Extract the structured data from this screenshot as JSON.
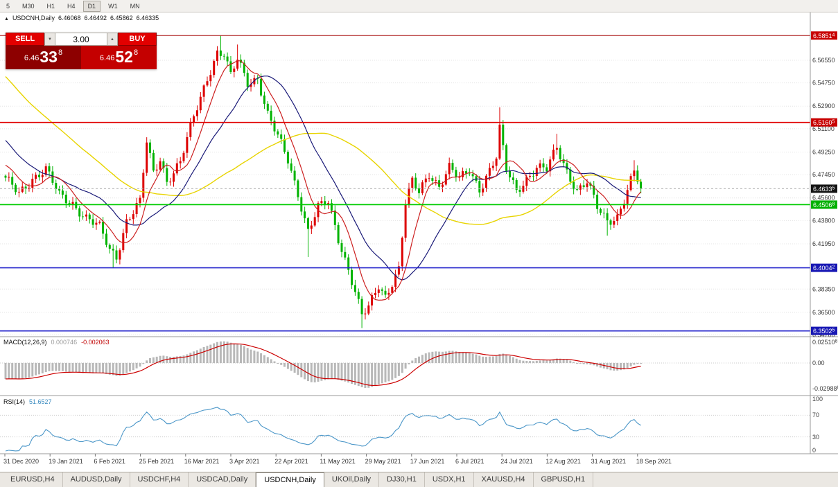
{
  "toolbar": {
    "timeframes": [
      {
        "label": "5",
        "active": false
      },
      {
        "label": "M30",
        "active": false
      },
      {
        "label": "H1",
        "active": false
      },
      {
        "label": "H4",
        "active": false
      },
      {
        "label": "D1",
        "active": true
      },
      {
        "label": "W1",
        "active": false
      },
      {
        "label": "MN",
        "active": false
      }
    ]
  },
  "title": {
    "direction_icon": "▲",
    "symbol": "USDCNH,Daily",
    "open": "6.46068",
    "high": "6.46492",
    "low": "6.45862",
    "close": "6.46335"
  },
  "trade_panel": {
    "sell_label": "SELL",
    "buy_label": "BUY",
    "volume": "3.00",
    "spinner_down": "▼",
    "spinner_up": "▲",
    "sell_price": {
      "prefix": "6.46",
      "big": "33",
      "sup": "8"
    },
    "buy_price": {
      "prefix": "6.46",
      "big": "52",
      "sup": "8"
    }
  },
  "indicators": {
    "macd": {
      "label": "MACD(12,26,9)",
      "value_main": "0.000746",
      "value_signal": "-0.002063",
      "axis_top": "0.025108",
      "axis_zero": "0.00",
      "axis_bottom": "-0.029888"
    },
    "rsi": {
      "label": "RSI(14)",
      "value": "51.6527",
      "axis": [
        "100",
        "70",
        "30",
        "0"
      ]
    }
  },
  "tabs": [
    {
      "label": "EURUSD,H4",
      "active": false
    },
    {
      "label": "AUDUSD,Daily",
      "active": false
    },
    {
      "label": "USDCHF,H4",
      "active": false
    },
    {
      "label": "USDCAD,Daily",
      "active": false
    },
    {
      "label": "USDCNH,Daily",
      "active": true
    },
    {
      "label": "UKOil,Daily",
      "active": false
    },
    {
      "label": "DJ30,H1",
      "active": false
    },
    {
      "label": "USDX,H1",
      "active": false
    },
    {
      "label": "XAUUSD,H4",
      "active": false
    },
    {
      "label": "GBPUSD,H1",
      "active": false
    }
  ],
  "chart_data": {
    "type": "candlestick",
    "symbol": "USDCNH",
    "timeframe": "Daily",
    "visible_bars": 190,
    "last_close": 6.46335,
    "ohlc_current": {
      "open": 6.46068,
      "high": 6.46492,
      "low": 6.45862,
      "close": 6.46335
    },
    "price_axis_labels": [
      "6.56550",
      "6.54750",
      "6.52900",
      "6.51100",
      "6.49250",
      "6.47450",
      "6.45600",
      "6.43800",
      "6.41950",
      "6.38350",
      "6.36500",
      "6.34700"
    ],
    "axis_price_boxes": [
      {
        "text": "6.58514",
        "price": 6.58514,
        "color": "#c80000"
      },
      {
        "text": "6.51605",
        "price": 6.51605,
        "color": "#c80000"
      },
      {
        "text": "6.46335",
        "price": 6.46335,
        "color": "#141414"
      },
      {
        "text": "6.45068",
        "price": 6.45068,
        "color": "#00b000"
      },
      {
        "text": "6.40042",
        "price": 6.40042,
        "color": "#1818b4"
      },
      {
        "text": "6.35025",
        "price": 6.35025,
        "color": "#1818b4"
      }
    ],
    "hlines": [
      {
        "price": 6.58514,
        "color": "#b43232",
        "w": 1.2
      },
      {
        "price": 6.51605,
        "color": "#e00000",
        "w": 1.8
      },
      {
        "price": 6.45068,
        "color": "#00cc00",
        "w": 1.8
      },
      {
        "price": 6.40042,
        "color": "#2424cc",
        "w": 1.6
      },
      {
        "price": 6.35025,
        "color": "#2424cc",
        "w": 1.6
      }
    ],
    "date_labels": [
      "31 Dec 2020",
      "19 Jan 2021",
      "6 Feb 2021",
      "25 Feb 2021",
      "16 Mar 2021",
      "3 Apr 2021",
      "22 Apr 2021",
      "11 May 2021",
      "29 May 2021",
      "17 Jun 2021",
      "6 Jul 2021",
      "24 Jul 2021",
      "12 Aug 2021",
      "31 Aug 2021",
      "18 Sep 2021"
    ],
    "close_waypoints": [
      [
        0,
        6.47
      ],
      [
        4,
        6.46
      ],
      [
        8,
        6.472
      ],
      [
        12,
        6.478
      ],
      [
        16,
        6.458
      ],
      [
        20,
        6.452
      ],
      [
        24,
        6.44
      ],
      [
        28,
        6.432
      ],
      [
        31,
        6.415
      ],
      [
        33,
        6.41
      ],
      [
        36,
        6.438
      ],
      [
        40,
        6.452
      ],
      [
        42,
        6.5
      ],
      [
        44,
        6.476
      ],
      [
        46,
        6.488
      ],
      [
        48,
        6.47
      ],
      [
        52,
        6.484
      ],
      [
        56,
        6.52
      ],
      [
        60,
        6.552
      ],
      [
        63,
        6.572
      ],
      [
        65,
        6.57
      ],
      [
        67,
        6.552
      ],
      [
        69,
        6.566
      ],
      [
        72,
        6.548
      ],
      [
        75,
        6.552
      ],
      [
        78,
        6.522
      ],
      [
        81,
        6.504
      ],
      [
        84,
        6.486
      ],
      [
        87,
        6.46
      ],
      [
        90,
        6.43
      ],
      [
        93,
        6.448
      ],
      [
        96,
        6.452
      ],
      [
        99,
        6.424
      ],
      [
        102,
        6.4
      ],
      [
        104,
        6.382
      ],
      [
        106,
        6.362
      ],
      [
        108,
        6.368
      ],
      [
        111,
        6.386
      ],
      [
        113,
        6.378
      ],
      [
        115,
        6.39
      ],
      [
        117,
        6.4
      ],
      [
        119,
        6.452
      ],
      [
        121,
        6.468
      ],
      [
        123,
        6.46
      ],
      [
        126,
        6.476
      ],
      [
        129,
        6.466
      ],
      [
        132,
        6.48
      ],
      [
        135,
        6.47
      ],
      [
        138,
        6.478
      ],
      [
        141,
        6.464
      ],
      [
        144,
        6.478
      ],
      [
        146,
        6.488
      ],
      [
        147,
        6.51
      ],
      [
        149,
        6.478
      ],
      [
        152,
        6.462
      ],
      [
        155,
        6.472
      ],
      [
        158,
        6.48
      ],
      [
        161,
        6.478
      ],
      [
        164,
        6.496
      ],
      [
        167,
        6.478
      ],
      [
        170,
        6.462
      ],
      [
        173,
        6.468
      ],
      [
        176,
        6.448
      ],
      [
        179,
        6.438
      ],
      [
        182,
        6.442
      ],
      [
        184,
        6.455
      ],
      [
        187,
        6.476
      ],
      [
        189,
        6.46335
      ]
    ],
    "spikes": [
      {
        "i": 32,
        "low": 6.4005
      },
      {
        "i": 64,
        "high": 6.5851
      },
      {
        "i": 69,
        "high": 6.578
      },
      {
        "i": 90,
        "low": 6.409
      },
      {
        "i": 106,
        "low": 6.3525
      },
      {
        "i": 147,
        "high": 6.528
      },
      {
        "i": 164,
        "high": 6.507
      },
      {
        "i": 179,
        "low": 6.426
      },
      {
        "i": 187,
        "high": 6.486
      }
    ],
    "moving_averages": [
      {
        "period": 55,
        "color": "#e8d400",
        "w": 1.4
      },
      {
        "period": 21,
        "color": "#1a1a78",
        "w": 1.2
      },
      {
        "period": 8,
        "color": "#cc2020",
        "w": 1.2
      }
    ],
    "macd_params": {
      "fast": 12,
      "slow": 26,
      "signal": 9
    },
    "rsi_period": 14,
    "colors": {
      "bull": "#dd0000",
      "bear": "#00b300",
      "macd_hist": "#b8b8b8",
      "macd_signal": "#cc0000",
      "rsi_line": "#4a96c8",
      "grid": "#e4e4e4"
    }
  }
}
